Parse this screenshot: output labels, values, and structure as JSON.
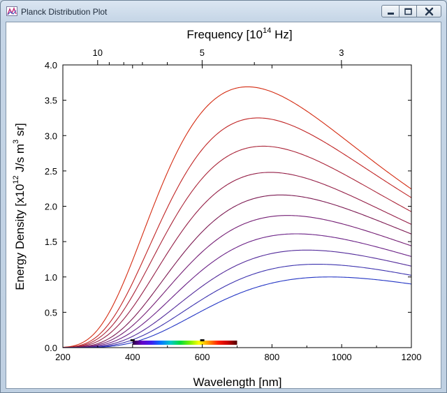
{
  "window": {
    "title": "Planck Distribution Plot",
    "icons": [
      "chart-app-icon",
      "minimize-icon",
      "maximize-icon",
      "close-icon"
    ]
  },
  "chart_data": {
    "type": "line",
    "title": "",
    "xlabel": "Wavelength [nm]",
    "ylabel_parts": {
      "prefix": "Energy Density [x10",
      "exp1": "12",
      "mid": " J/s m",
      "exp2": "3",
      "suffix": " sr]"
    },
    "top_axis_label_parts": {
      "prefix": "Frequency [10",
      "exp": "14",
      "suffix": " Hz]"
    },
    "xlim": [
      200,
      1200
    ],
    "ylim": [
      0.0,
      4.0
    ],
    "x_ticks": [
      "200",
      "400",
      "600",
      "800",
      "1000",
      "1200"
    ],
    "y_ticks": [
      "0.0",
      "0.5",
      "1.0",
      "1.5",
      "2.0",
      "2.5",
      "3.0",
      "3.5",
      "4.0"
    ],
    "top_ticks": [
      {
        "freq": 10,
        "label": "10"
      },
      {
        "freq": 9,
        "label": ""
      },
      {
        "freq": 8,
        "label": ""
      },
      {
        "freq": 7,
        "label": ""
      },
      {
        "freq": 6,
        "label": ""
      },
      {
        "freq": 5,
        "label": "5"
      },
      {
        "freq": 4,
        "label": ""
      },
      {
        "freq": 3,
        "label": "3"
      }
    ],
    "grid": false,
    "legend": "none",
    "series": [
      {
        "peak_nm": 730,
        "peak_value": 3.69,
        "color": "#d42a10"
      },
      {
        "peak_nm": 760,
        "peak_value": 3.25,
        "color": "#c02424"
      },
      {
        "peak_nm": 775,
        "peak_value": 2.85,
        "color": "#aa2438"
      },
      {
        "peak_nm": 795,
        "peak_value": 2.48,
        "color": "#941e46"
      },
      {
        "peak_nm": 825,
        "peak_value": 2.16,
        "color": "#7c1a52"
      },
      {
        "peak_nm": 845,
        "peak_value": 1.87,
        "color": "#741e74"
      },
      {
        "peak_nm": 870,
        "peak_value": 1.61,
        "color": "#6a2086"
      },
      {
        "peak_nm": 900,
        "peak_value": 1.38,
        "color": "#522a9a"
      },
      {
        "peak_nm": 930,
        "peak_value": 1.18,
        "color": "#3c32ae"
      },
      {
        "peak_nm": 965,
        "peak_value": 1.0,
        "color": "#2234c4"
      }
    ],
    "visible_spectrum": {
      "range_nm": [
        400,
        700
      ],
      "y_value": 0.07,
      "markers_nm": [
        400,
        600
      ],
      "stops": [
        "#2c0040",
        "#6400c8",
        "#3c1ef0",
        "#0078ff",
        "#00c8c8",
        "#00dc3c",
        "#78f000",
        "#ffff00",
        "#ff9600",
        "#ff1e00",
        "#c80000",
        "#500000"
      ]
    }
  }
}
